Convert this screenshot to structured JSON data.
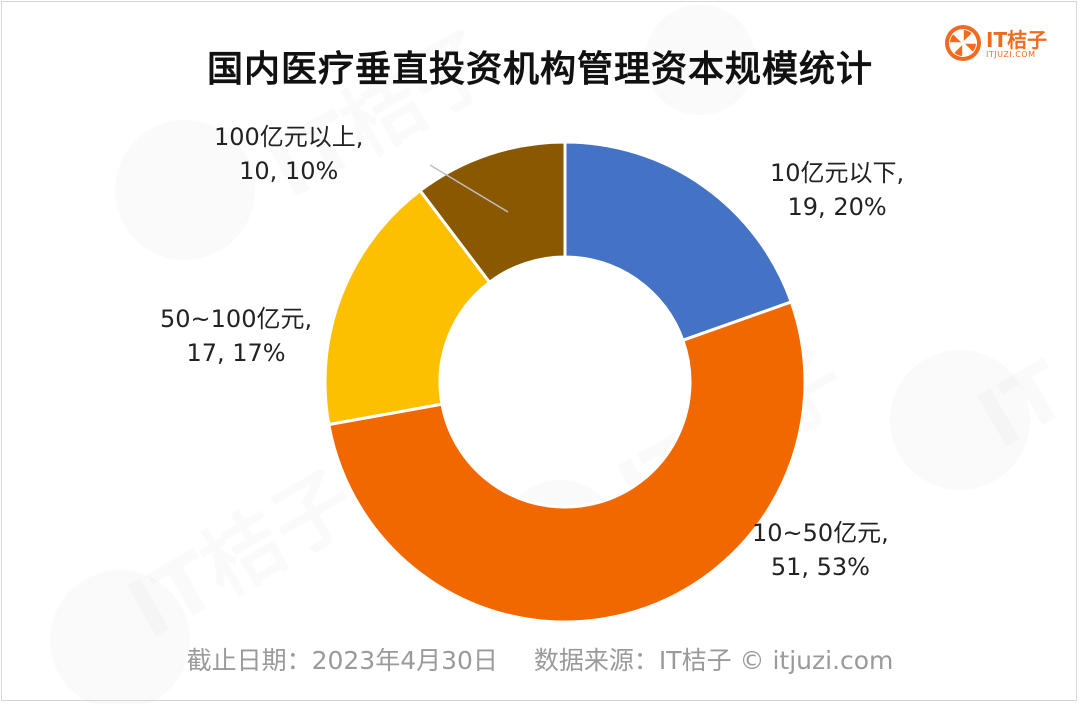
{
  "chart_data": {
    "type": "pie",
    "title": "国内医疗垂直投资机构管理资本规模统计",
    "slices": [
      {
        "category": "10亿元以下",
        "value": 19,
        "percent": "20%",
        "label_line1": "10亿元以下,",
        "label_line2": "19, 20%",
        "color": "#4472c4"
      },
      {
        "category": "10~50亿元",
        "value": 51,
        "percent": "53%",
        "label_line1": "10~50亿元,",
        "label_line2": "51, 53%",
        "color": "#f26800"
      },
      {
        "category": "50~100亿元",
        "value": 17,
        "percent": "17%",
        "label_line1": "50~100亿元,",
        "label_line2": "17, 17%",
        "color": "#fdc000"
      },
      {
        "category": "100亿元以上",
        "value": 10,
        "percent": "10%",
        "label_line1": "100亿元以上,",
        "label_line2": "10, 10%",
        "color": "#8a5800"
      }
    ],
    "style": "donut",
    "legend": "none"
  },
  "logo": {
    "name": "IT桔子",
    "url": "ITJUZI.COM",
    "color": "#f26b1d"
  },
  "footer": {
    "date": "截止日期：2023年4月30日",
    "source": "数据来源：IT桔子 © itjuzi.com"
  }
}
